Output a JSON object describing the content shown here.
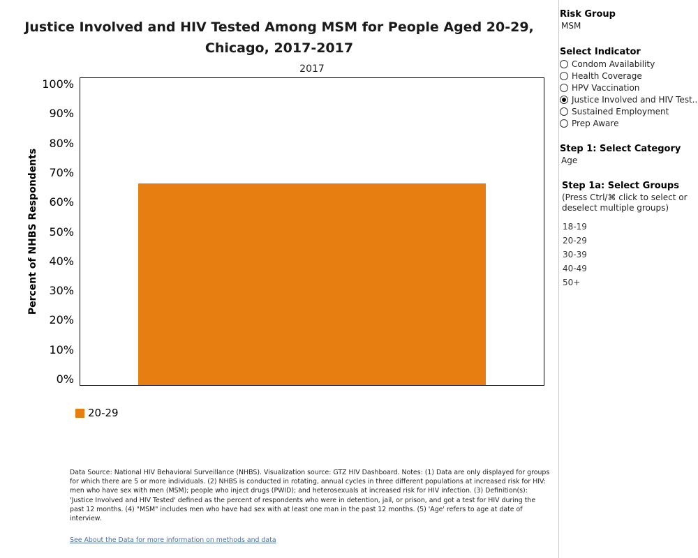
{
  "title": "Justice Involved and HIV Tested Among MSM for People Aged 20-29, Chicago, 2017-2017",
  "chart_data": {
    "type": "bar",
    "facet_label": "2017",
    "categories": [
      "20-29"
    ],
    "values": [
      66.5
    ],
    "ylabel": "Percent of NHBS Respondents",
    "ylim": [
      0,
      100
    ],
    "yticks": [
      0,
      10,
      20,
      30,
      40,
      50,
      60,
      70,
      80,
      90,
      100
    ],
    "ytick_labels": [
      "0%",
      "10%",
      "20%",
      "30%",
      "40%",
      "50%",
      "60%",
      "70%",
      "80%",
      "90%",
      "100%"
    ],
    "legend": [
      {
        "label": "20-29",
        "color": "#E67E12"
      }
    ],
    "legend_position": "bottom-left",
    "bar_color": "#E67E12",
    "grid": false
  },
  "notes": "Data Source: National HIV Behavioral Surveillance (NHBS). Visualization source: GTZ HIV Dashboard. Notes: (1) Data are only displayed for groups for which there are 5 or more individuals. (2) NHBS is conducted in rotating, annual cycles in three different populations at increased risk for HIV: men who have sex with men (MSM); people who inject drugs (PWID); and heterosexuals at increased risk for HIV infection. (3) Definition(s): 'Justice Involved and HIV Tested' defined as the percent of respondents who were in detention, jail, or prison, and got a test for HIV during the past 12 months. (4) \"MSM\" includes men who have had sex with at least one man in the past 12 months.  (5) 'Age' refers to age at date of interview.",
  "link_text": "See About the Data for more information on methods and data",
  "panel": {
    "risk_group_heading": "Risk Group",
    "risk_group_value": "MSM",
    "indicator_heading": "Select Indicator",
    "indicators": [
      {
        "label": "Condom Availability",
        "selected": false
      },
      {
        "label": "Health Coverage",
        "selected": false
      },
      {
        "label": "HPV Vaccination",
        "selected": false
      },
      {
        "label": "Justice Involved and HIV Test..",
        "selected": true
      },
      {
        "label": "Sustained Employment",
        "selected": false
      },
      {
        "label": "Prep Aware",
        "selected": false
      }
    ],
    "step1_heading": "Step 1: Select Category",
    "step1_value": "Age",
    "step1a_heading": "Step 1a: Select Groups",
    "step1a_note": "(Press Ctrl/⌘ click to select or deselect multiple groups)",
    "groups": [
      "18-19",
      "20-29",
      "30-39",
      "40-49",
      "50+"
    ]
  }
}
